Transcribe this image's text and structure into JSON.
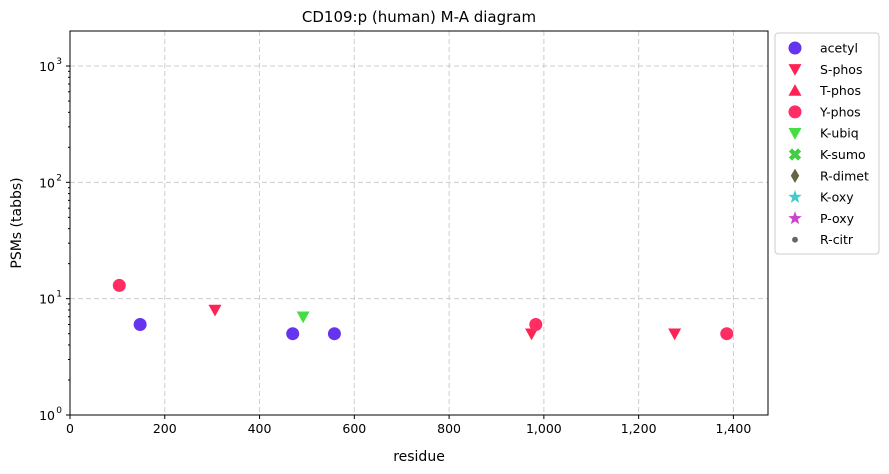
{
  "chart_data": {
    "type": "scatter",
    "title": "CD109:p (human) M-A diagram",
    "xlabel": "residue",
    "ylabel": "PSMs (tabbs)",
    "xlim": [
      0,
      1473
    ],
    "ylim": [
      1,
      2000
    ],
    "yscale": "log",
    "x_ticks": [
      0,
      200,
      400,
      600,
      800,
      1000,
      1200,
      1400
    ],
    "x_tick_labels": [
      "0",
      "200",
      "400",
      "600",
      "800",
      "1,000",
      "1,200",
      "1,400"
    ],
    "y_ticks": [
      1,
      10,
      100,
      1000
    ],
    "y_tick_labels": [
      "10",
      "10",
      "10",
      "10"
    ],
    "y_tick_exponents": [
      "0",
      "1",
      "2",
      "3"
    ],
    "grid": true,
    "legend_position": "outside-right",
    "series": [
      {
        "name": "acetyl",
        "marker": "circle",
        "color": "#6633ee",
        "points": [
          {
            "x": 148,
            "y": 6
          },
          {
            "x": 470,
            "y": 5
          },
          {
            "x": 558,
            "y": 5
          }
        ]
      },
      {
        "name": "S-phos",
        "marker": "triangle-down",
        "color": "#ff2255",
        "points": [
          {
            "x": 306,
            "y": 8
          },
          {
            "x": 974,
            "y": 5
          },
          {
            "x": 1276,
            "y": 5
          }
        ]
      },
      {
        "name": "T-phos",
        "marker": "triangle-up",
        "color": "#ff2255",
        "points": []
      },
      {
        "name": "Y-phos",
        "marker": "circle",
        "color": "#ff2d62",
        "points": [
          {
            "x": 104,
            "y": 13
          },
          {
            "x": 983,
            "y": 6
          },
          {
            "x": 1386,
            "y": 5
          }
        ]
      },
      {
        "name": "K-ubiq",
        "marker": "triangle-down",
        "color": "#44dd44",
        "points": [
          {
            "x": 492,
            "y": 7
          }
        ]
      },
      {
        "name": "K-sumo",
        "marker": "x",
        "color": "#44cc44",
        "points": []
      },
      {
        "name": "R-dimet",
        "marker": "diamond",
        "color": "#666644",
        "points": []
      },
      {
        "name": "K-oxy",
        "marker": "star",
        "color": "#44cccc",
        "points": []
      },
      {
        "name": "P-oxy",
        "marker": "star",
        "color": "#cc44cc",
        "points": []
      },
      {
        "name": "R-citr",
        "marker": "dot",
        "color": "#666666",
        "points": []
      }
    ]
  }
}
